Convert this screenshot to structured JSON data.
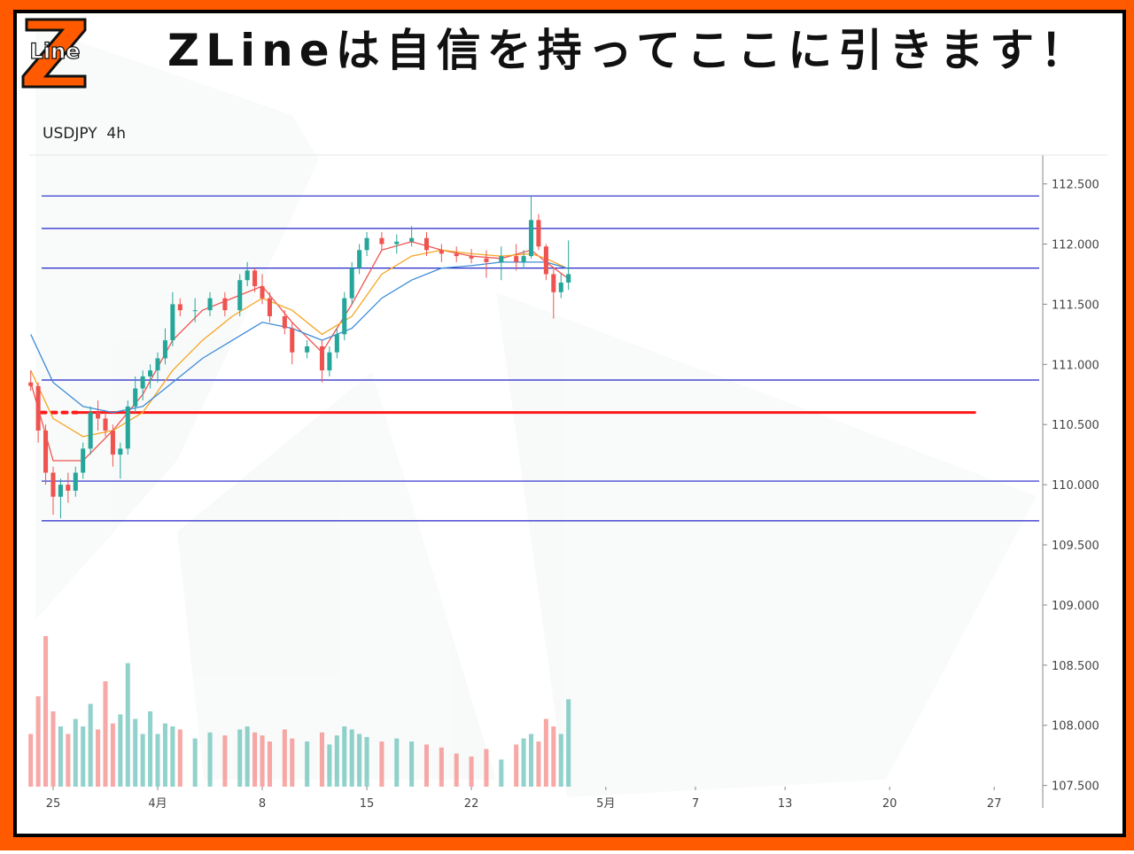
{
  "logo": {
    "letter": "Z",
    "text": "Line"
  },
  "headline": "ZLineは自信を持ってここに引きます！",
  "chart_data": {
    "type": "candlestick",
    "title": "USDJPY  4h",
    "up_color": "#26a69a",
    "down_color": "#ef5350",
    "xlim": [
      -1.6,
      66.25
    ],
    "xticks": [
      {
        "value": 0,
        "label": "25"
      },
      {
        "value": 7,
        "label": "4月"
      },
      {
        "value": 14,
        "label": "8"
      },
      {
        "value": 21,
        "label": "15"
      },
      {
        "value": 28,
        "label": "22"
      },
      {
        "value": 37,
        "label": "5月"
      },
      {
        "value": 43,
        "label": "7"
      },
      {
        "value": 49,
        "label": "13"
      },
      {
        "value": 56,
        "label": "20"
      },
      {
        "value": 63,
        "label": "27"
      }
    ],
    "ylim": [
      107.49,
      112.74
    ],
    "yticks": [
      {
        "value": 107.5,
        "label": "107.500"
      },
      {
        "value": 108,
        "label": "108.000"
      },
      {
        "value": 108.5,
        "label": "108.500"
      },
      {
        "value": 109,
        "label": "109.000"
      },
      {
        "value": 109.5,
        "label": "109.500"
      },
      {
        "value": 110,
        "label": "110.000"
      },
      {
        "value": 110.5,
        "label": "110.500"
      },
      {
        "value": 111,
        "label": "111.000"
      },
      {
        "value": 111.5,
        "label": "111.500"
      },
      {
        "value": 112,
        "label": "112.000"
      },
      {
        "value": 112.5,
        "label": "112.500"
      }
    ],
    "candles": {
      "x": [
        -1.5,
        -1,
        -0.5,
        0,
        0.5,
        1,
        1.5,
        2,
        2.5,
        3,
        3.5,
        4,
        4.5,
        5,
        5.5,
        6,
        6.5,
        7,
        7.5,
        8,
        8.5,
        9.5,
        10.5,
        11.5,
        12.5,
        13,
        13.5,
        14,
        14.5,
        15.5,
        16,
        17,
        18,
        18.5,
        19,
        19.5,
        20,
        20.5,
        21,
        22,
        23,
        24,
        25,
        26,
        27,
        28,
        29,
        30,
        31,
        31.5,
        32,
        32.5,
        33,
        33.5,
        34,
        34.5
      ],
      "open": [
        110.85,
        110.82,
        110.45,
        110.1,
        109.9,
        110.0,
        109.95,
        110.1,
        110.3,
        110.6,
        110.55,
        110.45,
        110.25,
        110.3,
        110.65,
        110.8,
        110.9,
        110.95,
        111.05,
        111.2,
        111.5,
        111.45,
        111.45,
        111.55,
        111.45,
        111.7,
        111.78,
        111.65,
        111.55,
        111.4,
        111.3,
        111.1,
        111.15,
        110.95,
        111.1,
        111.25,
        111.55,
        111.8,
        111.95,
        112.05,
        112.0,
        112.02,
        112.05,
        111.95,
        111.92,
        111.9,
        111.88,
        111.85,
        111.9,
        111.85,
        111.9,
        112.2,
        111.98,
        111.75,
        111.6,
        111.68
      ],
      "high": [
        110.95,
        110.85,
        110.5,
        110.15,
        110.05,
        110.1,
        110.15,
        110.35,
        110.65,
        110.7,
        110.6,
        110.5,
        110.35,
        110.7,
        110.9,
        110.95,
        111.0,
        111.1,
        111.3,
        111.6,
        111.55,
        111.55,
        111.6,
        111.6,
        111.75,
        111.85,
        111.8,
        111.75,
        111.6,
        111.45,
        111.35,
        111.2,
        111.2,
        111.15,
        111.3,
        111.6,
        111.85,
        112.0,
        112.1,
        112.1,
        112.08,
        112.15,
        112.1,
        112.0,
        111.98,
        111.96,
        111.95,
        111.98,
        112.0,
        111.95,
        112.4,
        112.25,
        112.0,
        111.8,
        111.75,
        112.03
      ],
      "low": [
        110.78,
        110.35,
        110.0,
        109.75,
        109.72,
        109.85,
        109.9,
        110.05,
        110.25,
        110.45,
        110.4,
        110.15,
        110.05,
        110.25,
        110.6,
        110.7,
        110.8,
        110.85,
        111.0,
        111.15,
        111.4,
        111.35,
        111.4,
        111.4,
        111.4,
        111.65,
        111.6,
        111.5,
        111.35,
        111.25,
        111.0,
        111.05,
        110.85,
        110.9,
        111.05,
        111.2,
        111.5,
        111.75,
        111.9,
        111.95,
        111.92,
        111.98,
        111.9,
        111.85,
        111.85,
        111.84,
        111.72,
        111.7,
        111.78,
        111.8,
        111.88,
        111.95,
        111.7,
        111.38,
        111.55,
        111.62
      ],
      "close": [
        110.82,
        110.45,
        110.1,
        109.9,
        110.0,
        109.95,
        110.1,
        110.3,
        110.6,
        110.55,
        110.45,
        110.25,
        110.3,
        110.65,
        110.8,
        110.9,
        110.95,
        111.05,
        111.2,
        111.5,
        111.45,
        111.45,
        111.55,
        111.45,
        111.7,
        111.78,
        111.65,
        111.55,
        111.4,
        111.3,
        111.1,
        111.15,
        110.95,
        111.1,
        111.25,
        111.55,
        111.8,
        111.95,
        112.05,
        112.0,
        112.02,
        112.05,
        111.95,
        111.92,
        111.9,
        111.88,
        111.85,
        111.9,
        111.85,
        111.9,
        112.2,
        111.98,
        111.75,
        111.6,
        111.68,
        111.75
      ],
      "volume": [
        35,
        60,
        100,
        50,
        40,
        35,
        45,
        40,
        55,
        38,
        70,
        42,
        48,
        82,
        45,
        35,
        50,
        35,
        42,
        40,
        38,
        32,
        36,
        34,
        38,
        40,
        36,
        34,
        30,
        38,
        32,
        30,
        36,
        28,
        34,
        40,
        38,
        35,
        33,
        30,
        32,
        30,
        28,
        26,
        22,
        20,
        25,
        18,
        28,
        32,
        35,
        30,
        45,
        40,
        35,
        58
      ]
    },
    "volume_ylim": [
      0,
      100
    ],
    "moving_averages": [
      {
        "color": "#ef5350",
        "x": [
          -1.5,
          0,
          2,
          4,
          6,
          8,
          10,
          12,
          14,
          16,
          18,
          20,
          22,
          24,
          26,
          28,
          30,
          32,
          33,
          34.4
        ],
        "values": [
          110.85,
          110.2,
          110.2,
          110.45,
          110.75,
          111.2,
          111.45,
          111.55,
          111.65,
          111.35,
          111.1,
          111.5,
          111.95,
          112.02,
          111.95,
          111.9,
          111.88,
          111.95,
          111.85,
          111.72
        ]
      },
      {
        "color": "#f5a623",
        "x": [
          -1.5,
          0,
          2,
          4,
          6,
          8,
          10,
          12,
          14,
          16,
          18,
          20,
          22,
          24,
          26,
          28,
          30,
          32,
          33,
          34.4
        ],
        "values": [
          110.95,
          110.55,
          110.4,
          110.45,
          110.6,
          110.95,
          111.2,
          111.4,
          111.55,
          111.45,
          111.25,
          111.4,
          111.75,
          111.9,
          111.95,
          111.92,
          111.9,
          111.92,
          111.88,
          111.8
        ]
      },
      {
        "color": "#3d8bd6",
        "x": [
          -1.5,
          0,
          2,
          4,
          6,
          8,
          10,
          12,
          14,
          16,
          18,
          20,
          22,
          24,
          26,
          28,
          30,
          32,
          33,
          34.4
        ],
        "values": [
          111.25,
          110.85,
          110.65,
          110.6,
          110.65,
          110.85,
          111.05,
          111.2,
          111.35,
          111.3,
          111.2,
          111.3,
          111.55,
          111.7,
          111.8,
          111.82,
          111.85,
          111.85,
          111.85,
          111.8
        ]
      }
    ],
    "levels": {
      "color": "#2323c8",
      "values": [
        112.4,
        112.13,
        111.8,
        110.87,
        110.03,
        109.7
      ]
    },
    "highlight": {
      "color": "#ff1a1a",
      "value": 110.6,
      "x": [
        -0.8,
        61.7
      ]
    }
  }
}
